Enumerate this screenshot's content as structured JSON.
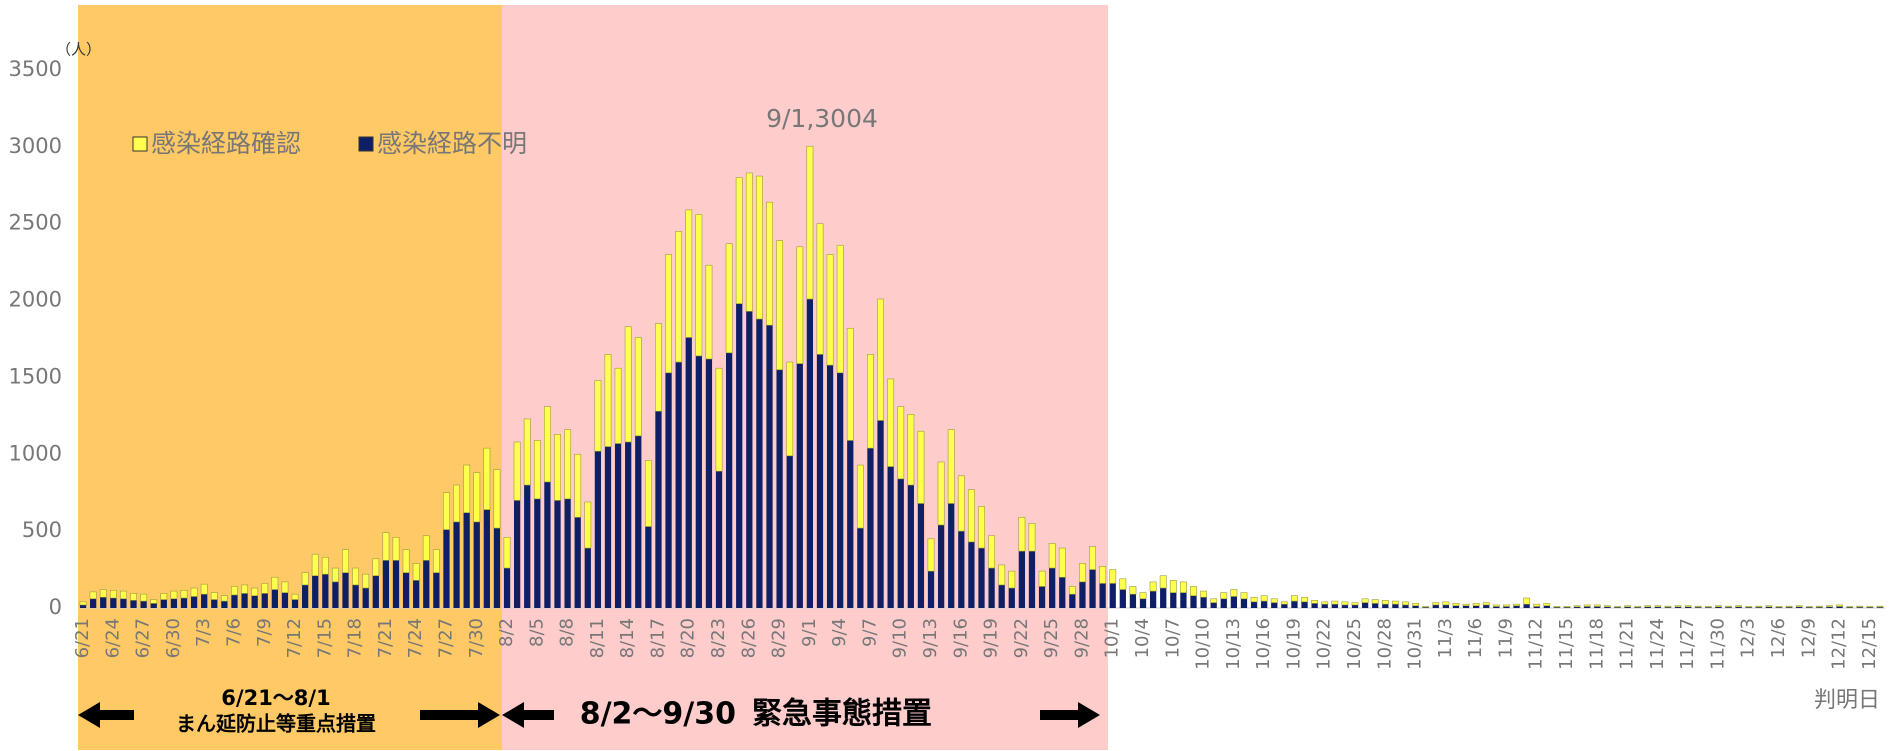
{
  "chart_data": {
    "type": "bar",
    "stacked": true,
    "unit_label": "（人）",
    "x_label": "判明日",
    "annotation": "9/1,3004",
    "periods": [
      {
        "range": "6/21～8/1",
        "name": "まん延防止等重点措置",
        "color": "#ffc966"
      },
      {
        "range": "8/2～9/30",
        "name": "緊急事態措置",
        "color": "#ffcccc"
      }
    ],
    "ylim": [
      0,
      3500
    ],
    "yticks": [
      0,
      500,
      1000,
      1500,
      2000,
      2500,
      3000,
      3500
    ],
    "grid": false,
    "categories": [
      "6/21",
      null,
      null,
      "6/24",
      null,
      null,
      "6/27",
      null,
      null,
      "6/30",
      null,
      null,
      "7/3",
      null,
      null,
      "7/6",
      null,
      null,
      "7/9",
      null,
      null,
      "7/12",
      null,
      null,
      "7/15",
      null,
      null,
      "7/18",
      null,
      null,
      "7/21",
      null,
      null,
      "7/24",
      null,
      null,
      "7/27",
      null,
      null,
      "7/30",
      null,
      null,
      "8/2",
      null,
      null,
      "8/5",
      null,
      null,
      "8/8",
      null,
      null,
      "8/11",
      null,
      null,
      "8/14",
      null,
      null,
      "8/17",
      null,
      null,
      "8/20",
      null,
      null,
      "8/23",
      null,
      null,
      "8/26",
      null,
      null,
      "8/29",
      null,
      null,
      "9/1",
      null,
      null,
      "9/4",
      null,
      null,
      "9/7",
      null,
      null,
      "9/10",
      null,
      null,
      "9/13",
      null,
      null,
      "9/16",
      null,
      null,
      "9/19",
      null,
      null,
      "9/22",
      null,
      null,
      "9/25",
      null,
      null,
      "9/28",
      null,
      null,
      "10/1",
      null,
      null,
      "10/4",
      null,
      null,
      "10/7",
      null,
      null,
      "10/10",
      null,
      null,
      "10/13",
      null,
      null,
      "10/16",
      null,
      null,
      "10/19",
      null,
      null,
      "10/22",
      null,
      null,
      "10/25",
      null,
      null,
      "10/28",
      null,
      null,
      "10/31",
      null,
      null,
      "11/3",
      null,
      null,
      "11/6",
      null,
      null,
      "11/9",
      null,
      null,
      "11/12",
      null,
      null,
      "11/15",
      null,
      null,
      "11/18",
      null,
      null,
      "11/21",
      null,
      null,
      "11/24",
      null,
      null,
      "11/27",
      null,
      null,
      "11/30",
      null,
      null,
      "12/3",
      null,
      null,
      "12/6",
      null,
      null,
      "12/9",
      null,
      null,
      "12/12",
      null,
      null,
      "12/15",
      null
    ],
    "series": [
      {
        "name": "感染経路不明",
        "color": "#0f1f66",
        "values": [
          20,
          60,
          70,
          65,
          60,
          50,
          45,
          30,
          55,
          60,
          65,
          75,
          90,
          55,
          45,
          85,
          95,
          80,
          95,
          120,
          100,
          55,
          150,
          210,
          220,
          170,
          230,
          150,
          130,
          210,
          310,
          310,
          230,
          180,
          310,
          230,
          510,
          560,
          620,
          560,
          640,
          520,
          260,
          700,
          800,
          710,
          820,
          700,
          710,
          590,
          390,
          1020,
          1050,
          1070,
          1080,
          1120,
          530,
          1280,
          1530,
          1600,
          1760,
          1640,
          1620,
          890,
          1660,
          1980,
          1930,
          1880,
          1840,
          1550,
          990,
          1590,
          2010,
          1650,
          1580,
          1530,
          1090,
          520,
          1040,
          1220,
          920,
          840,
          800,
          680,
          240,
          540,
          680,
          500,
          430,
          390,
          260,
          150,
          130,
          370,
          370,
          140,
          260,
          200,
          90,
          170,
          250,
          160,
          160,
          120,
          90,
          60,
          110,
          130,
          100,
          100,
          80,
          70,
          35,
          60,
          75,
          60,
          40,
          45,
          35,
          25,
          45,
          40,
          30,
          25,
          25,
          20,
          20,
          35,
          30,
          25,
          25,
          20,
          15,
          5,
          20,
          20,
          15,
          15,
          15,
          20,
          10,
          10,
          15,
          25,
          10,
          15,
          5,
          5,
          8,
          10,
          10,
          8,
          5,
          8,
          5,
          8,
          8,
          6,
          8,
          8,
          6,
          5,
          8,
          6,
          8,
          5,
          6,
          8,
          5,
          6,
          8,
          5,
          6,
          8,
          10,
          5,
          6,
          5,
          6
        ]
      },
      {
        "name": "感染経路確認",
        "color": "#ffff4d",
        "values": [
          20,
          45,
          50,
          50,
          50,
          45,
          45,
          25,
          40,
          50,
          50,
          55,
          65,
          45,
          35,
          55,
          55,
          50,
          65,
          80,
          70,
          35,
          80,
          140,
          110,
          90,
          150,
          110,
          90,
          110,
          180,
          150,
          150,
          110,
          160,
          150,
          240,
          240,
          310,
          320,
          400,
          380,
          200,
          380,
          430,
          380,
          490,
          430,
          450,
          410,
          300,
          460,
          600,
          490,
          750,
          640,
          430,
          570,
          770,
          850,
          830,
          920,
          610,
          670,
          710,
          820,
          900,
          930,
          800,
          840,
          610,
          760,
          994,
          850,
          720,
          830,
          730,
          410,
          610,
          790,
          570,
          470,
          460,
          470,
          210,
          410,
          480,
          360,
          340,
          270,
          210,
          130,
          110,
          220,
          180,
          100,
          160,
          190,
          50,
          120,
          150,
          110,
          90,
          70,
          50,
          40,
          60,
          80,
          80,
          70,
          60,
          40,
          25,
          40,
          45,
          40,
          30,
          35,
          25,
          15,
          35,
          30,
          20,
          15,
          20,
          20,
          15,
          25,
          25,
          25,
          20,
          20,
          15,
          5,
          15,
          20,
          15,
          10,
          15,
          15,
          10,
          10,
          10,
          40,
          15,
          15,
          5,
          5,
          7,
          10,
          10,
          7,
          5,
          7,
          5,
          7,
          7,
          6,
          7,
          7,
          6,
          5,
          7,
          6,
          7,
          5,
          6,
          7,
          5,
          6,
          7,
          5,
          6,
          7,
          10,
          5,
          6,
          5,
          6
        ]
      }
    ]
  }
}
